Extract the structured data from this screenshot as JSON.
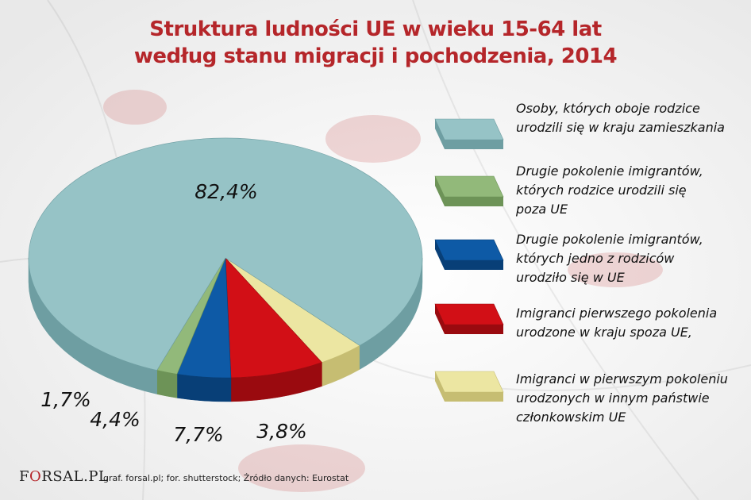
{
  "title": {
    "line1": "Struktura ludności UE w wieku 15-64 lat",
    "line2": "według stanu migracji i pochodzenia, 2014"
  },
  "chart_data": {
    "type": "pie",
    "title": "Struktura ludności UE w wieku 15-64 lat według stanu migracji i pochodzenia, 2014",
    "series": [
      {
        "name": "Osoby, których oboje rodzice urodzili się w kraju zamieszkania",
        "value": 82.4,
        "label": "82,4%",
        "color": "#96c3c6",
        "side": "#6e9ea2"
      },
      {
        "name": "Imigranci w pierwszym pokoleniu urodzonych w innym państwie członkowskim UE",
        "value": 3.8,
        "label": "3,8%",
        "color": "#ece6a2",
        "side": "#c6bd72"
      },
      {
        "name": "Imigranci pierwszego pokolenia urodzone w kraju spoza UE,",
        "value": 7.7,
        "label": "7,7%",
        "color": "#d20f16",
        "side": "#9a0a0f"
      },
      {
        "name": "Drugie pokolenie imigrantów, których jedno z rodziców urodziło się w UE",
        "value": 4.4,
        "label": "4,4%",
        "color": "#0e5aa6",
        "side": "#083f77"
      },
      {
        "name": "Drugie pokolenie imigrantów, których rodzice urodzili się poza UE",
        "value": 1.7,
        "label": "1,7%",
        "color": "#92b97a",
        "side": "#6d9357"
      }
    ]
  },
  "legend": [
    {
      "lines": [
        "Osoby, których oboje rodzice",
        "urodzili się w kraju zamieszkania"
      ],
      "color": "#96c3c6",
      "side": "#6e9ea2"
    },
    {
      "lines": [
        "Drugie pokolenie imigrantów,",
        "których rodzice urodzili się",
        "poza UE"
      ],
      "color": "#92b97a",
      "side": "#6d9357"
    },
    {
      "lines": [
        "Drugie pokolenie imigrantów,",
        "których jedno z rodziców",
        "urodziło się w UE"
      ],
      "color": "#0e5aa6",
      "side": "#083f77"
    },
    {
      "lines": [
        "Imigranci pierwszego pokolenia",
        "urodzone w kraju spoza UE,"
      ],
      "color": "#d20f16",
      "side": "#9a0a0f"
    },
    {
      "lines": [
        "Imigranci w pierwszym pokoleniu",
        "urodzonych w innym państwie",
        "członkowskim UE"
      ],
      "color": "#ece6a2",
      "side": "#c6bd72"
    }
  ],
  "footer": {
    "logo_prefix": "F",
    "logo_o": "O",
    "logo_suffix": "RSAL.PL",
    "credit": "graf. forsal.pl; for. shutterstock;  Źródło danych:  Eurostat"
  }
}
